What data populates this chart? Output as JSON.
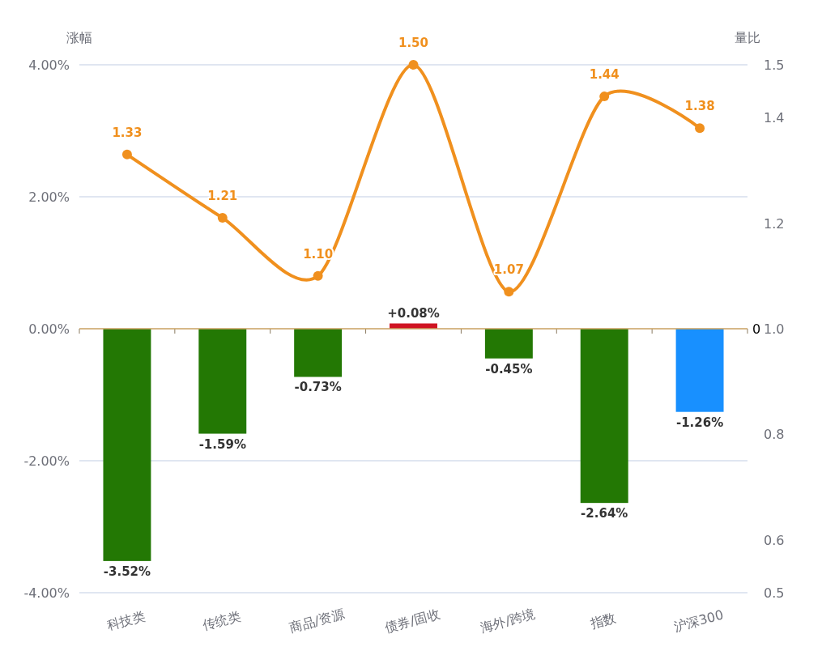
{
  "chart_data": {
    "type": "bar",
    "ylabel": "涨幅",
    "y2label": "量比",
    "categories": [
      "科技类",
      "传统类",
      "商品/资源",
      "债券/固收",
      "海外/跨境",
      "指数",
      "沪深300"
    ],
    "series": [
      {
        "colors": [
          "#237804",
          "#237804",
          "#237804",
          "#cf1322",
          "#237804",
          "#237804",
          "#1890ff"
        ],
        "values": [
          -3.52,
          -1.59,
          -0.73,
          0.08,
          -0.45,
          -2.64,
          -1.26
        ],
        "value_labels": [
          "-3.52%",
          "-1.59%",
          "-0.73%",
          "+0.08%",
          "-0.45%",
          "-2.64%",
          "-1.26%"
        ]
      },
      {
        "type": "line",
        "axis": "y2",
        "color": "#f0901e",
        "values": [
          1.33,
          1.21,
          1.1,
          1.5,
          1.07,
          1.44,
          1.38
        ],
        "value_labels": [
          "1.33",
          "1.21",
          "1.10",
          "1.50",
          "1.07",
          "1.44",
          "1.38"
        ]
      }
    ],
    "ylim": [
      -4,
      4
    ],
    "yticks": [
      {
        "value": -4,
        "label": "-4.00%"
      },
      {
        "value": -2,
        "label": "-2.00%"
      },
      {
        "value": 0,
        "label": "0.00%"
      },
      {
        "value": 2,
        "label": "2.00%"
      },
      {
        "value": 4,
        "label": "4.00%"
      }
    ],
    "y2lim": [
      0.5,
      1.5
    ],
    "y2ticks": [
      0.5,
      0.6,
      0.8,
      {
        "value": 1.0,
        "label": "1.0"
      },
      1.2,
      1.4,
      1.5
    ],
    "ref_lines": [
      {
        "axis": "y",
        "value": 0,
        "label": "0",
        "color": "#c8a060"
      }
    ],
    "grid": "y",
    "marker": "circle"
  }
}
